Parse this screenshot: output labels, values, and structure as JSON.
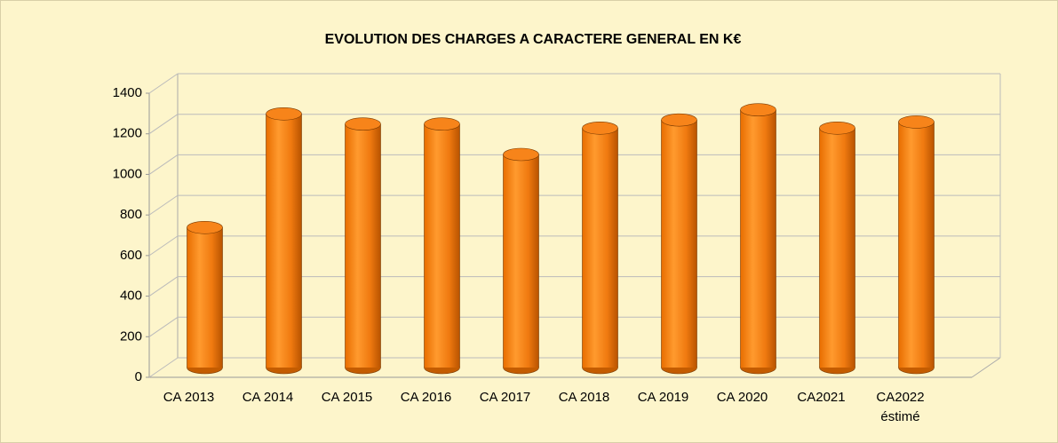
{
  "chart_data": {
    "type": "bar",
    "title": "EVOLUTION DES CHARGES A CARACTERE GENERAL EN K€",
    "categories": [
      "CA 2013",
      "CA 2014",
      "CA 2015",
      "CA 2016",
      "CA 2017",
      "CA 2018",
      "CA 2019",
      "CA 2020",
      "CA2021",
      "CA2022 éstimé"
    ],
    "values": [
      690,
      1250,
      1200,
      1200,
      1050,
      1180,
      1220,
      1270,
      1180,
      1210
    ],
    "color": "#f7841a",
    "ylim": [
      0,
      1400
    ],
    "yticks": [
      0,
      200,
      400,
      600,
      800,
      1000,
      1200,
      1400
    ],
    "grid": true
  }
}
